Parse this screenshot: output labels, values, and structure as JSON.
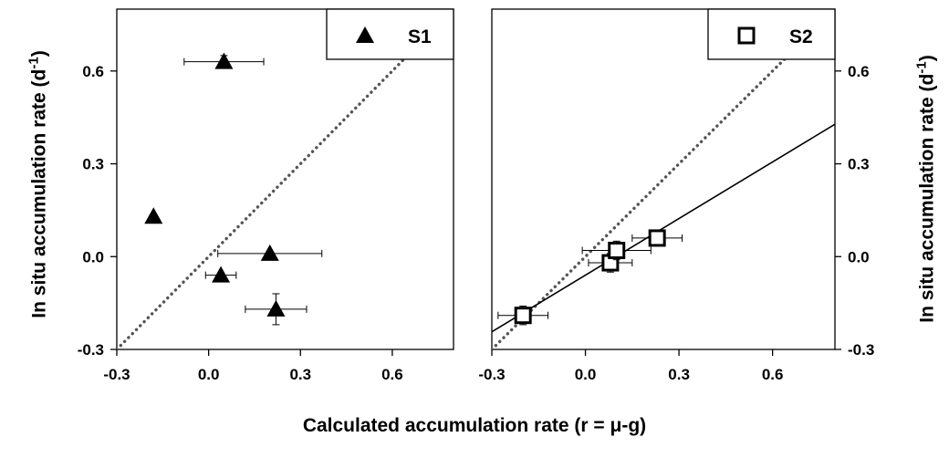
{
  "figure": {
    "xlabel": "Calculated accumulation rate (r = μ-g)",
    "ylabel_prefix": "In situ accumulation rate (d",
    "ylabel_exp": "-1",
    "ylabel_suffix": ")"
  },
  "chart_data": [
    {
      "type": "scatter",
      "panel": "left",
      "legend_label": "S1",
      "legend_position": "top-right",
      "marker": "filled-triangle",
      "xlim": [
        -0.3,
        0.8
      ],
      "ylim": [
        -0.3,
        0.8
      ],
      "xticks": [
        "-0.3",
        "0.0",
        "0.3",
        "0.6"
      ],
      "yticks": [
        "-0.3",
        "0.0",
        "0.3",
        "0.6"
      ],
      "y_axis_side": "left",
      "grid": false,
      "points": [
        {
          "x": 0.05,
          "y": 0.63,
          "xerr": 0.13,
          "yerr": 0.02
        },
        {
          "x": -0.18,
          "y": 0.13,
          "xerr": 0,
          "yerr": 0
        },
        {
          "x": 0.2,
          "y": 0.01,
          "xerr": 0.17,
          "yerr": 0
        },
        {
          "x": 0.04,
          "y": -0.06,
          "xerr": 0.05,
          "yerr": 0
        },
        {
          "x": 0.22,
          "y": -0.17,
          "xerr": 0.1,
          "yerr": 0.05
        }
      ],
      "one_to_one_line": true,
      "regression_line": null
    },
    {
      "type": "scatter",
      "panel": "right",
      "legend_label": "S2",
      "legend_position": "top-right",
      "marker": "open-square",
      "xlim": [
        -0.3,
        0.8
      ],
      "ylim": [
        -0.3,
        0.8
      ],
      "xticks": [
        "-0.3",
        "0.0",
        "0.3",
        "0.6"
      ],
      "yticks": [
        "-0.3",
        "0.0",
        "0.3",
        "0.6"
      ],
      "y_axis_side": "right",
      "grid": false,
      "points": [
        {
          "x": -0.2,
          "y": -0.19,
          "xerr": 0.08,
          "yerr": 0.03
        },
        {
          "x": 0.08,
          "y": -0.02,
          "xerr": 0.07,
          "yerr": 0.03
        },
        {
          "x": 0.1,
          "y": 0.02,
          "xerr": 0.11,
          "yerr": 0.03
        },
        {
          "x": 0.23,
          "y": 0.06,
          "xerr": 0.08,
          "yerr": 0.02
        }
      ],
      "one_to_one_line": true,
      "regression_line": {
        "slope": 0.61,
        "intercept": -0.06
      }
    }
  ]
}
